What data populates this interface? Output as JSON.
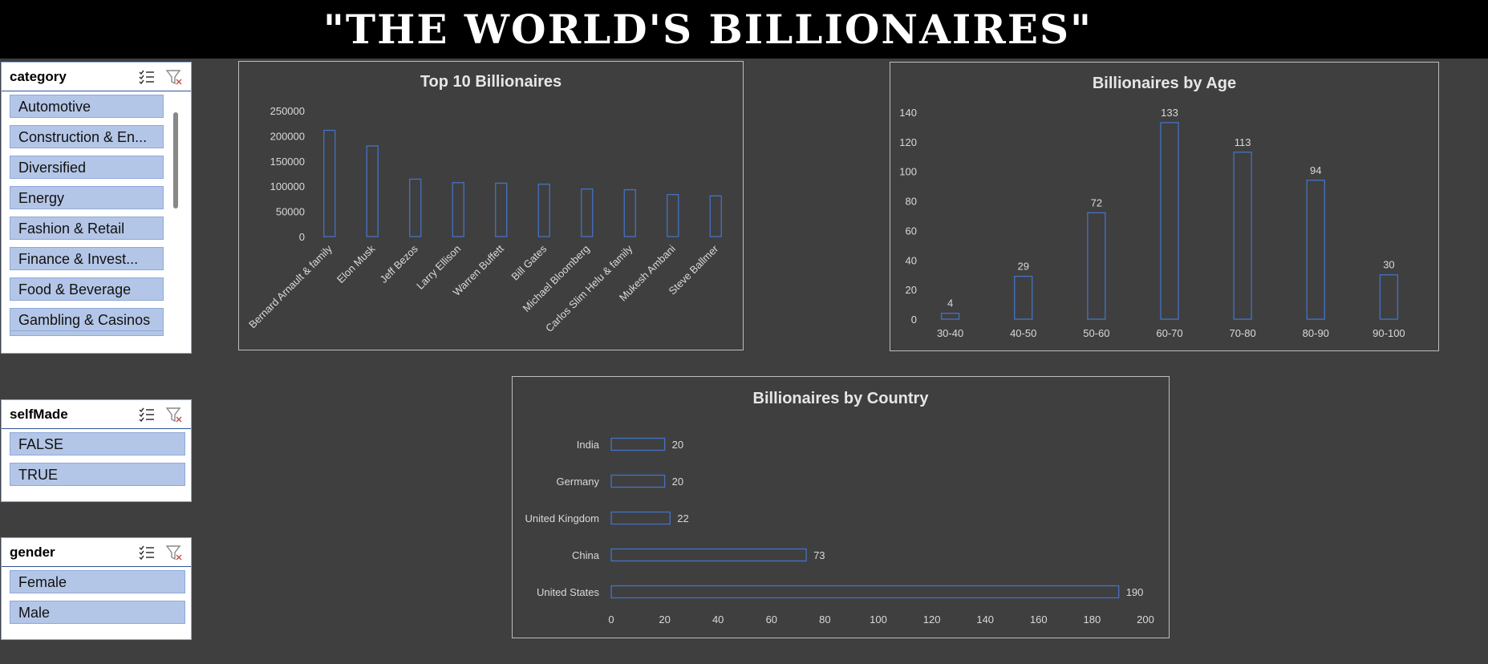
{
  "banner": {
    "title": "\"THE WORLD'S BILLIONAIRES\""
  },
  "slicers": {
    "category": {
      "title": "category",
      "items": [
        "Automotive",
        "Construction & En...",
        "Diversified",
        "Energy",
        "Fashion & Retail",
        "Finance & Invest...",
        "Food & Beverage",
        "Gambling & Casinos"
      ]
    },
    "selfMade": {
      "title": "selfMade",
      "items": [
        "FALSE",
        "TRUE"
      ]
    },
    "gender": {
      "title": "gender",
      "items": [
        "Female",
        "Male"
      ]
    }
  },
  "colors": {
    "bar_stroke": "#4472c4",
    "axis_text": "#d9d9d9",
    "slicer_item": "#b4c6e7"
  },
  "chart_data": [
    {
      "id": "top10",
      "type": "bar",
      "title": "Top 10 Billionaires",
      "categories": [
        "Bernard Arnault & family",
        "Elon Musk",
        "Jeff Bezos",
        "Larry Ellison",
        "Warren Buffett",
        "Bill Gates",
        "Michael Bloomberg",
        "Carlos Slim Helu & family",
        "Mukesh Ambani",
        "Steve Ballmer"
      ],
      "values": [
        211000,
        180000,
        114000,
        107000,
        106000,
        104000,
        94500,
        93000,
        83400,
        80700
      ],
      "yticks": [
        0,
        50000,
        100000,
        150000,
        200000,
        250000
      ],
      "ylim": [
        0,
        250000
      ],
      "xlabel": "",
      "ylabel": "",
      "grid": false
    },
    {
      "id": "age",
      "type": "bar",
      "title": "Billionaires by Age",
      "categories": [
        "30-40",
        "40-50",
        "50-60",
        "60-70",
        "70-80",
        "80-90",
        "90-100"
      ],
      "values": [
        4,
        29,
        72,
        133,
        113,
        94,
        30
      ],
      "yticks": [
        0,
        20,
        40,
        60,
        80,
        100,
        120,
        140
      ],
      "ylim": [
        0,
        140
      ],
      "data_labels": true,
      "grid": false
    },
    {
      "id": "country",
      "type": "bar",
      "orientation": "horizontal",
      "title": "Billionaires by Country",
      "categories": [
        "India",
        "Germany",
        "United Kingdom",
        "China",
        "United States"
      ],
      "values": [
        20,
        20,
        22,
        73,
        190
      ],
      "xticks": [
        0,
        20,
        40,
        60,
        80,
        100,
        120,
        140,
        160,
        180,
        200
      ],
      "xlim": [
        0,
        200
      ],
      "data_labels": true,
      "grid": false
    }
  ]
}
